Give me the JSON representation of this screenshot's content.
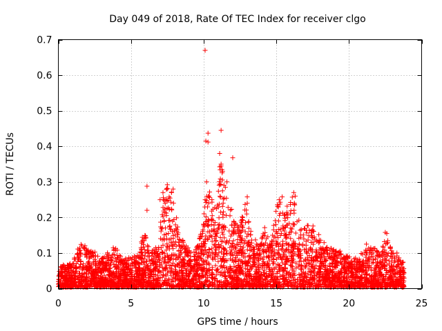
{
  "chart_data": {
    "type": "scatter",
    "title": "Day 049 of 2018, Rate Of TEC Index for receiver clgo",
    "xlabel": "GPS time / hours",
    "ylabel": "ROTI / TECUs",
    "xlim": [
      0,
      25
    ],
    "ylim": [
      0,
      0.7
    ],
    "grid": true,
    "x_ticks": [
      0,
      5,
      10,
      15,
      20,
      25
    ],
    "x_tick_labels": [
      "0",
      "5",
      "10",
      "15",
      "20",
      "25"
    ],
    "y_ticks": [
      0,
      0.1,
      0.2,
      0.3,
      0.4,
      0.5,
      0.6,
      0.7
    ],
    "y_tick_labels": [
      "0",
      "0.1",
      "0.2",
      "0.3",
      "0.4",
      "0.5",
      "0.6",
      "0.7"
    ],
    "marker": "+",
    "color": "#ff0000",
    "series": [
      {
        "name": "ROTI",
        "x_range": [
          0,
          23.8
        ],
        "points_per_hour": 180,
        "envelope": [
          {
            "x": 0.0,
            "y": 0.06
          },
          {
            "x": 1.0,
            "y": 0.07
          },
          {
            "x": 1.5,
            "y": 0.13
          },
          {
            "x": 2.5,
            "y": 0.1
          },
          {
            "x": 3.0,
            "y": 0.08
          },
          {
            "x": 3.8,
            "y": 0.12
          },
          {
            "x": 4.5,
            "y": 0.08
          },
          {
            "x": 5.5,
            "y": 0.09
          },
          {
            "x": 5.9,
            "y": 0.17
          },
          {
            "x": 6.3,
            "y": 0.1
          },
          {
            "x": 6.8,
            "y": 0.12
          },
          {
            "x": 7.2,
            "y": 0.25
          },
          {
            "x": 7.5,
            "y": 0.29
          },
          {
            "x": 7.9,
            "y": 0.28
          },
          {
            "x": 8.3,
            "y": 0.14
          },
          {
            "x": 8.7,
            "y": 0.13
          },
          {
            "x": 9.2,
            "y": 0.09
          },
          {
            "x": 9.6,
            "y": 0.12
          },
          {
            "x": 9.9,
            "y": 0.18
          },
          {
            "x": 10.2,
            "y": 0.3
          },
          {
            "x": 10.5,
            "y": 0.26
          },
          {
            "x": 10.8,
            "y": 0.22
          },
          {
            "x": 11.1,
            "y": 0.36
          },
          {
            "x": 11.5,
            "y": 0.29
          },
          {
            "x": 12.0,
            "y": 0.21
          },
          {
            "x": 12.4,
            "y": 0.17
          },
          {
            "x": 12.9,
            "y": 0.25
          },
          {
            "x": 13.3,
            "y": 0.15
          },
          {
            "x": 13.8,
            "y": 0.12
          },
          {
            "x": 14.2,
            "y": 0.17
          },
          {
            "x": 14.6,
            "y": 0.12
          },
          {
            "x": 15.1,
            "y": 0.25
          },
          {
            "x": 15.6,
            "y": 0.22
          },
          {
            "x": 16.2,
            "y": 0.26
          },
          {
            "x": 16.8,
            "y": 0.17
          },
          {
            "x": 17.5,
            "y": 0.18
          },
          {
            "x": 18.2,
            "y": 0.13
          },
          {
            "x": 18.8,
            "y": 0.11
          },
          {
            "x": 19.5,
            "y": 0.1
          },
          {
            "x": 20.3,
            "y": 0.08
          },
          {
            "x": 21.0,
            "y": 0.1
          },
          {
            "x": 21.6,
            "y": 0.12
          },
          {
            "x": 22.2,
            "y": 0.09
          },
          {
            "x": 22.5,
            "y": 0.15
          },
          {
            "x": 23.0,
            "y": 0.1
          },
          {
            "x": 23.8,
            "y": 0.07
          }
        ],
        "outliers": [
          [
            10.1,
            0.67
          ],
          [
            10.15,
            0.415
          ],
          [
            10.3,
            0.437
          ],
          [
            10.3,
            0.412
          ],
          [
            11.2,
            0.445
          ],
          [
            11.1,
            0.38
          ],
          [
            11.2,
            0.35
          ],
          [
            11.3,
            0.33
          ],
          [
            12.0,
            0.368
          ],
          [
            6.1,
            0.288
          ],
          [
            7.5,
            0.292
          ],
          [
            7.9,
            0.28
          ],
          [
            7.2,
            0.27
          ],
          [
            10.2,
            0.3
          ],
          [
            11.6,
            0.3
          ],
          [
            13.0,
            0.258
          ],
          [
            13.0,
            0.24
          ],
          [
            15.2,
            0.25
          ],
          [
            15.4,
            0.258
          ],
          [
            16.2,
            0.27
          ],
          [
            16.3,
            0.26
          ],
          [
            22.5,
            0.158
          ],
          [
            22.6,
            0.155
          ],
          [
            6.1,
            0.22
          ],
          [
            7.0,
            0.25
          ],
          [
            23.3,
            0.1
          ],
          [
            23.4,
            0.082
          ],
          [
            21.2,
            0.125
          ]
        ]
      }
    ]
  }
}
